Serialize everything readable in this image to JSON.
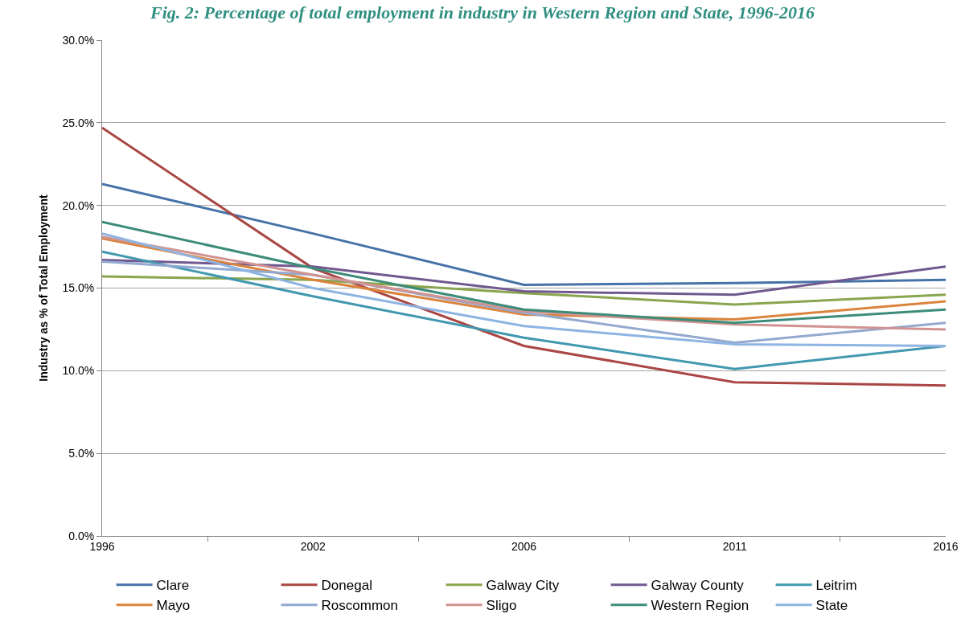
{
  "chart_data": {
    "type": "line",
    "title": "Fig. 2: Percentage of total employment in industry in Western Region and State, 1996-2016",
    "ylabel": "Industry as % of Total Employment",
    "categories": [
      "1996",
      "2002",
      "2006",
      "2011",
      "2016"
    ],
    "series": [
      {
        "name": "Clare",
        "color": "#4572a7",
        "values": [
          21.3,
          18.3,
          15.2,
          15.3,
          15.5
        ]
      },
      {
        "name": "Donegal",
        "color": "#aa4643",
        "values": [
          24.7,
          16.2,
          11.5,
          9.3,
          9.1
        ]
      },
      {
        "name": "Galway City",
        "color": "#89a54e",
        "values": [
          15.7,
          15.5,
          14.7,
          14.0,
          14.6
        ]
      },
      {
        "name": "Galway County",
        "color": "#71588f",
        "values": [
          16.7,
          16.3,
          14.8,
          14.6,
          16.3
        ]
      },
      {
        "name": "Leitrim",
        "color": "#4198af",
        "values": [
          17.2,
          14.5,
          12.0,
          10.1,
          11.5
        ]
      },
      {
        "name": "Mayo",
        "color": "#db843d",
        "values": [
          18.0,
          15.5,
          13.4,
          13.1,
          14.2
        ]
      },
      {
        "name": "Roscommon",
        "color": "#93a9cf",
        "values": [
          16.6,
          15.8,
          13.5,
          11.7,
          12.9
        ]
      },
      {
        "name": "Sligo",
        "color": "#d19392",
        "values": [
          18.1,
          15.8,
          13.6,
          12.8,
          12.5
        ]
      },
      {
        "name": "Western Region",
        "color": "#3d8c7a",
        "values": [
          19.0,
          16.2,
          13.7,
          12.9,
          13.7
        ]
      },
      {
        "name": "State",
        "color": "#8eb4e3",
        "values": [
          18.3,
          15.0,
          12.7,
          11.6,
          11.5
        ]
      }
    ],
    "ylim": [
      0,
      30
    ],
    "yticks": [
      {
        "value": 0,
        "label": "0.0%"
      },
      {
        "value": 5,
        "label": "5.0%"
      },
      {
        "value": 10,
        "label": "10.0%"
      },
      {
        "value": 15,
        "label": "15.0%"
      },
      {
        "value": 20,
        "label": "20.0%"
      },
      {
        "value": 25,
        "label": "25.0%"
      },
      {
        "value": 30,
        "label": "30.0%"
      }
    ],
    "grid": "y",
    "legend": "bottom",
    "marker": "none",
    "line_style": "solid"
  }
}
